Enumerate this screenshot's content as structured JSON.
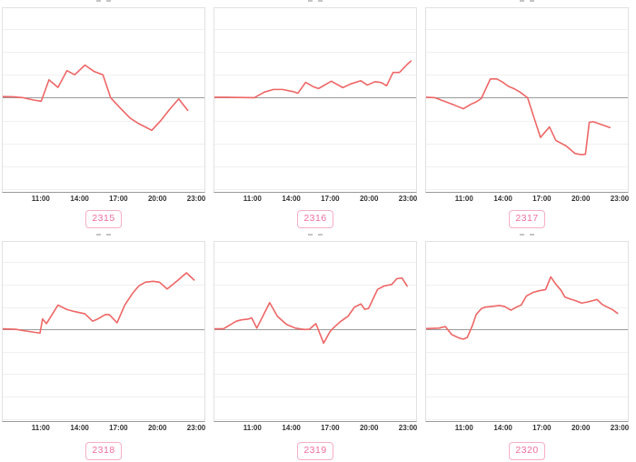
{
  "style": {
    "line_color": "#ee6666",
    "zero_line_color": "#9a9a9a",
    "gridline_color": "#f0f0f0",
    "plot_border_color": "#e1e1e1",
    "axis_line_color": "#9a9a9a",
    "tick_label_color": "#333333",
    "badge_text_color": "#ee6d9e",
    "badge_border_color": "#f5afc5",
    "badge_bg_color": "#ffffff",
    "title_fragment_color": "#c4c4c4"
  },
  "axis": {
    "x_domain": [
      8.0,
      23.7
    ],
    "y_domain": [
      -4.1,
      3.9
    ],
    "gridlines": [
      3,
      2,
      1,
      -1,
      -2,
      -3,
      -4
    ],
    "zero_value": 0,
    "x_ticks": [
      {
        "value": 11,
        "label": "11:00"
      },
      {
        "value": 14,
        "label": "14:00"
      },
      {
        "value": 17,
        "label": "17:00"
      },
      {
        "value": 20,
        "label": "20:00"
      },
      {
        "value": 23,
        "label": "23:00"
      }
    ]
  },
  "chart_data": [
    {
      "type": "line",
      "label": "2315",
      "xlabel": "",
      "ylabel": "",
      "x_tick_labels": [
        "11:00",
        "14:00",
        "17:00",
        "20:00",
        "23:00"
      ],
      "grid": true,
      "zero_baseline": true,
      "x": [
        8,
        8.8,
        9.6,
        10.4,
        11.0,
        11.6,
        12.3,
        13.0,
        13.6,
        14.4,
        15.1,
        15.8,
        16.4,
        17.1,
        17.9,
        18.5,
        19.6,
        20.3,
        21.0,
        21.7,
        22.4
      ],
      "y": [
        0.05,
        0.04,
        0.0,
        -0.1,
        -0.15,
        0.78,
        0.45,
        1.18,
        1.0,
        1.42,
        1.15,
        1.0,
        0.0,
        -0.42,
        -0.88,
        -1.1,
        -1.42,
        -1.0,
        -0.5,
        -0.05,
        -0.55
      ]
    },
    {
      "type": "line",
      "label": "2316",
      "xlabel": "",
      "ylabel": "",
      "x_tick_labels": [
        "11:00",
        "14:00",
        "17:00",
        "20:00",
        "23:00"
      ],
      "grid": true,
      "zero_baseline": true,
      "x": [
        8,
        9,
        10,
        11.1,
        11.9,
        12.6,
        13.3,
        14.1,
        14.5,
        15.1,
        15.7,
        16.1,
        17.1,
        18.0,
        18.6,
        19.4,
        19.9,
        20.5,
        21.0,
        21.4,
        21.9,
        22.4,
        23.0,
        23.3
      ],
      "y": [
        0.02,
        0.02,
        0.01,
        0.0,
        0.25,
        0.36,
        0.36,
        0.27,
        0.2,
        0.67,
        0.48,
        0.4,
        0.72,
        0.44,
        0.6,
        0.74,
        0.55,
        0.7,
        0.66,
        0.52,
        1.1,
        1.1,
        1.45,
        1.6
      ]
    },
    {
      "type": "line",
      "label": "2317",
      "xlabel": "",
      "ylabel": "",
      "x_tick_labels": [
        "11:00",
        "14:00",
        "17:00",
        "20:00",
        "23:00"
      ],
      "grid": true,
      "zero_baseline": true,
      "x": [
        8,
        8.7,
        9.4,
        10.2,
        10.9,
        11.5,
        11.9,
        12.3,
        13.0,
        13.5,
        13.9,
        14.4,
        14.9,
        15.3,
        15.9,
        16.4,
        16.9,
        17.6,
        18.1,
        18.9,
        19.6,
        20.1,
        20.4,
        20.7,
        21.0,
        21.8,
        22.3
      ],
      "y": [
        0.02,
        0.0,
        -0.15,
        -0.32,
        -0.48,
        -0.28,
        -0.18,
        -0.03,
        0.82,
        0.82,
        0.7,
        0.5,
        0.38,
        0.25,
        0.0,
        -0.87,
        -1.73,
        -1.27,
        -1.86,
        -2.1,
        -2.43,
        -2.48,
        -2.46,
        -1.07,
        -1.04,
        -1.2,
        -1.3
      ]
    },
    {
      "type": "line",
      "label": "2318",
      "xlabel": "",
      "ylabel": "",
      "x_tick_labels": [
        "11:00",
        "14:00",
        "17:00",
        "20:00",
        "23:00"
      ],
      "grid": true,
      "zero_baseline": true,
      "x": [
        8,
        9,
        9.8,
        10.9,
        11.1,
        11.4,
        12.3,
        13.0,
        13.6,
        14.4,
        15.0,
        15.4,
        16.0,
        16.3,
        16.9,
        17.5,
        18.1,
        18.6,
        19.1,
        19.7,
        20.2,
        20.8,
        21.6,
        22.3,
        22.9
      ],
      "y": [
        0.02,
        0.0,
        -0.08,
        -0.17,
        0.46,
        0.25,
        1.08,
        0.88,
        0.79,
        0.69,
        0.36,
        0.46,
        0.66,
        0.65,
        0.29,
        1.08,
        1.6,
        1.94,
        2.1,
        2.14,
        2.1,
        1.8,
        2.17,
        2.52,
        2.2
      ]
    },
    {
      "type": "line",
      "label": "2319",
      "xlabel": "",
      "ylabel": "",
      "x_tick_labels": [
        "11:00",
        "14:00",
        "17:00",
        "20:00",
        "23:00"
      ],
      "grid": true,
      "zero_baseline": true,
      "x": [
        8,
        8.7,
        9.7,
        10.1,
        10.6,
        10.9,
        11.3,
        12.3,
        12.9,
        13.6,
        14.3,
        15.0,
        15.4,
        15.9,
        16.5,
        17.0,
        17.3,
        17.8,
        18.4,
        18.9,
        19.4,
        19.7,
        20.0,
        20.7,
        21.2,
        21.8,
        22.2,
        22.6,
        23.0
      ],
      "y": [
        0.02,
        0.02,
        0.36,
        0.42,
        0.45,
        0.51,
        0.05,
        1.19,
        0.58,
        0.22,
        0.05,
        -0.01,
        0.0,
        0.25,
        -0.62,
        -0.1,
        0.08,
        0.34,
        0.58,
        0.99,
        1.13,
        0.89,
        0.93,
        1.78,
        1.93,
        2.0,
        2.26,
        2.29,
        1.93
      ]
    },
    {
      "type": "line",
      "label": "2320",
      "xlabel": "",
      "ylabel": "",
      "x_tick_labels": [
        "11:00",
        "14:00",
        "17:00",
        "20:00",
        "23:00"
      ],
      "grid": true,
      "zero_baseline": true,
      "x": [
        8,
        9.0,
        9.5,
        10.0,
        10.6,
        10.9,
        11.2,
        11.6,
        11.9,
        12.3,
        12.6,
        13.1,
        13.7,
        14.1,
        14.6,
        15.0,
        15.4,
        15.8,
        16.3,
        16.8,
        17.3,
        17.7,
        18.1,
        18.5,
        18.8,
        19.2,
        19.6,
        20.1,
        20.5,
        21.0,
        21.3,
        21.7,
        22.0,
        22.5,
        22.9
      ],
      "y": [
        0.03,
        0.05,
        0.12,
        -0.24,
        -0.4,
        -0.44,
        -0.37,
        0.16,
        0.66,
        0.92,
        0.99,
        1.02,
        1.06,
        1.02,
        0.85,
        0.98,
        1.08,
        1.48,
        1.64,
        1.72,
        1.77,
        2.34,
        2.01,
        1.74,
        1.44,
        1.35,
        1.28,
        1.17,
        1.21,
        1.28,
        1.33,
        1.11,
        1.02,
        0.88,
        0.71
      ]
    }
  ]
}
